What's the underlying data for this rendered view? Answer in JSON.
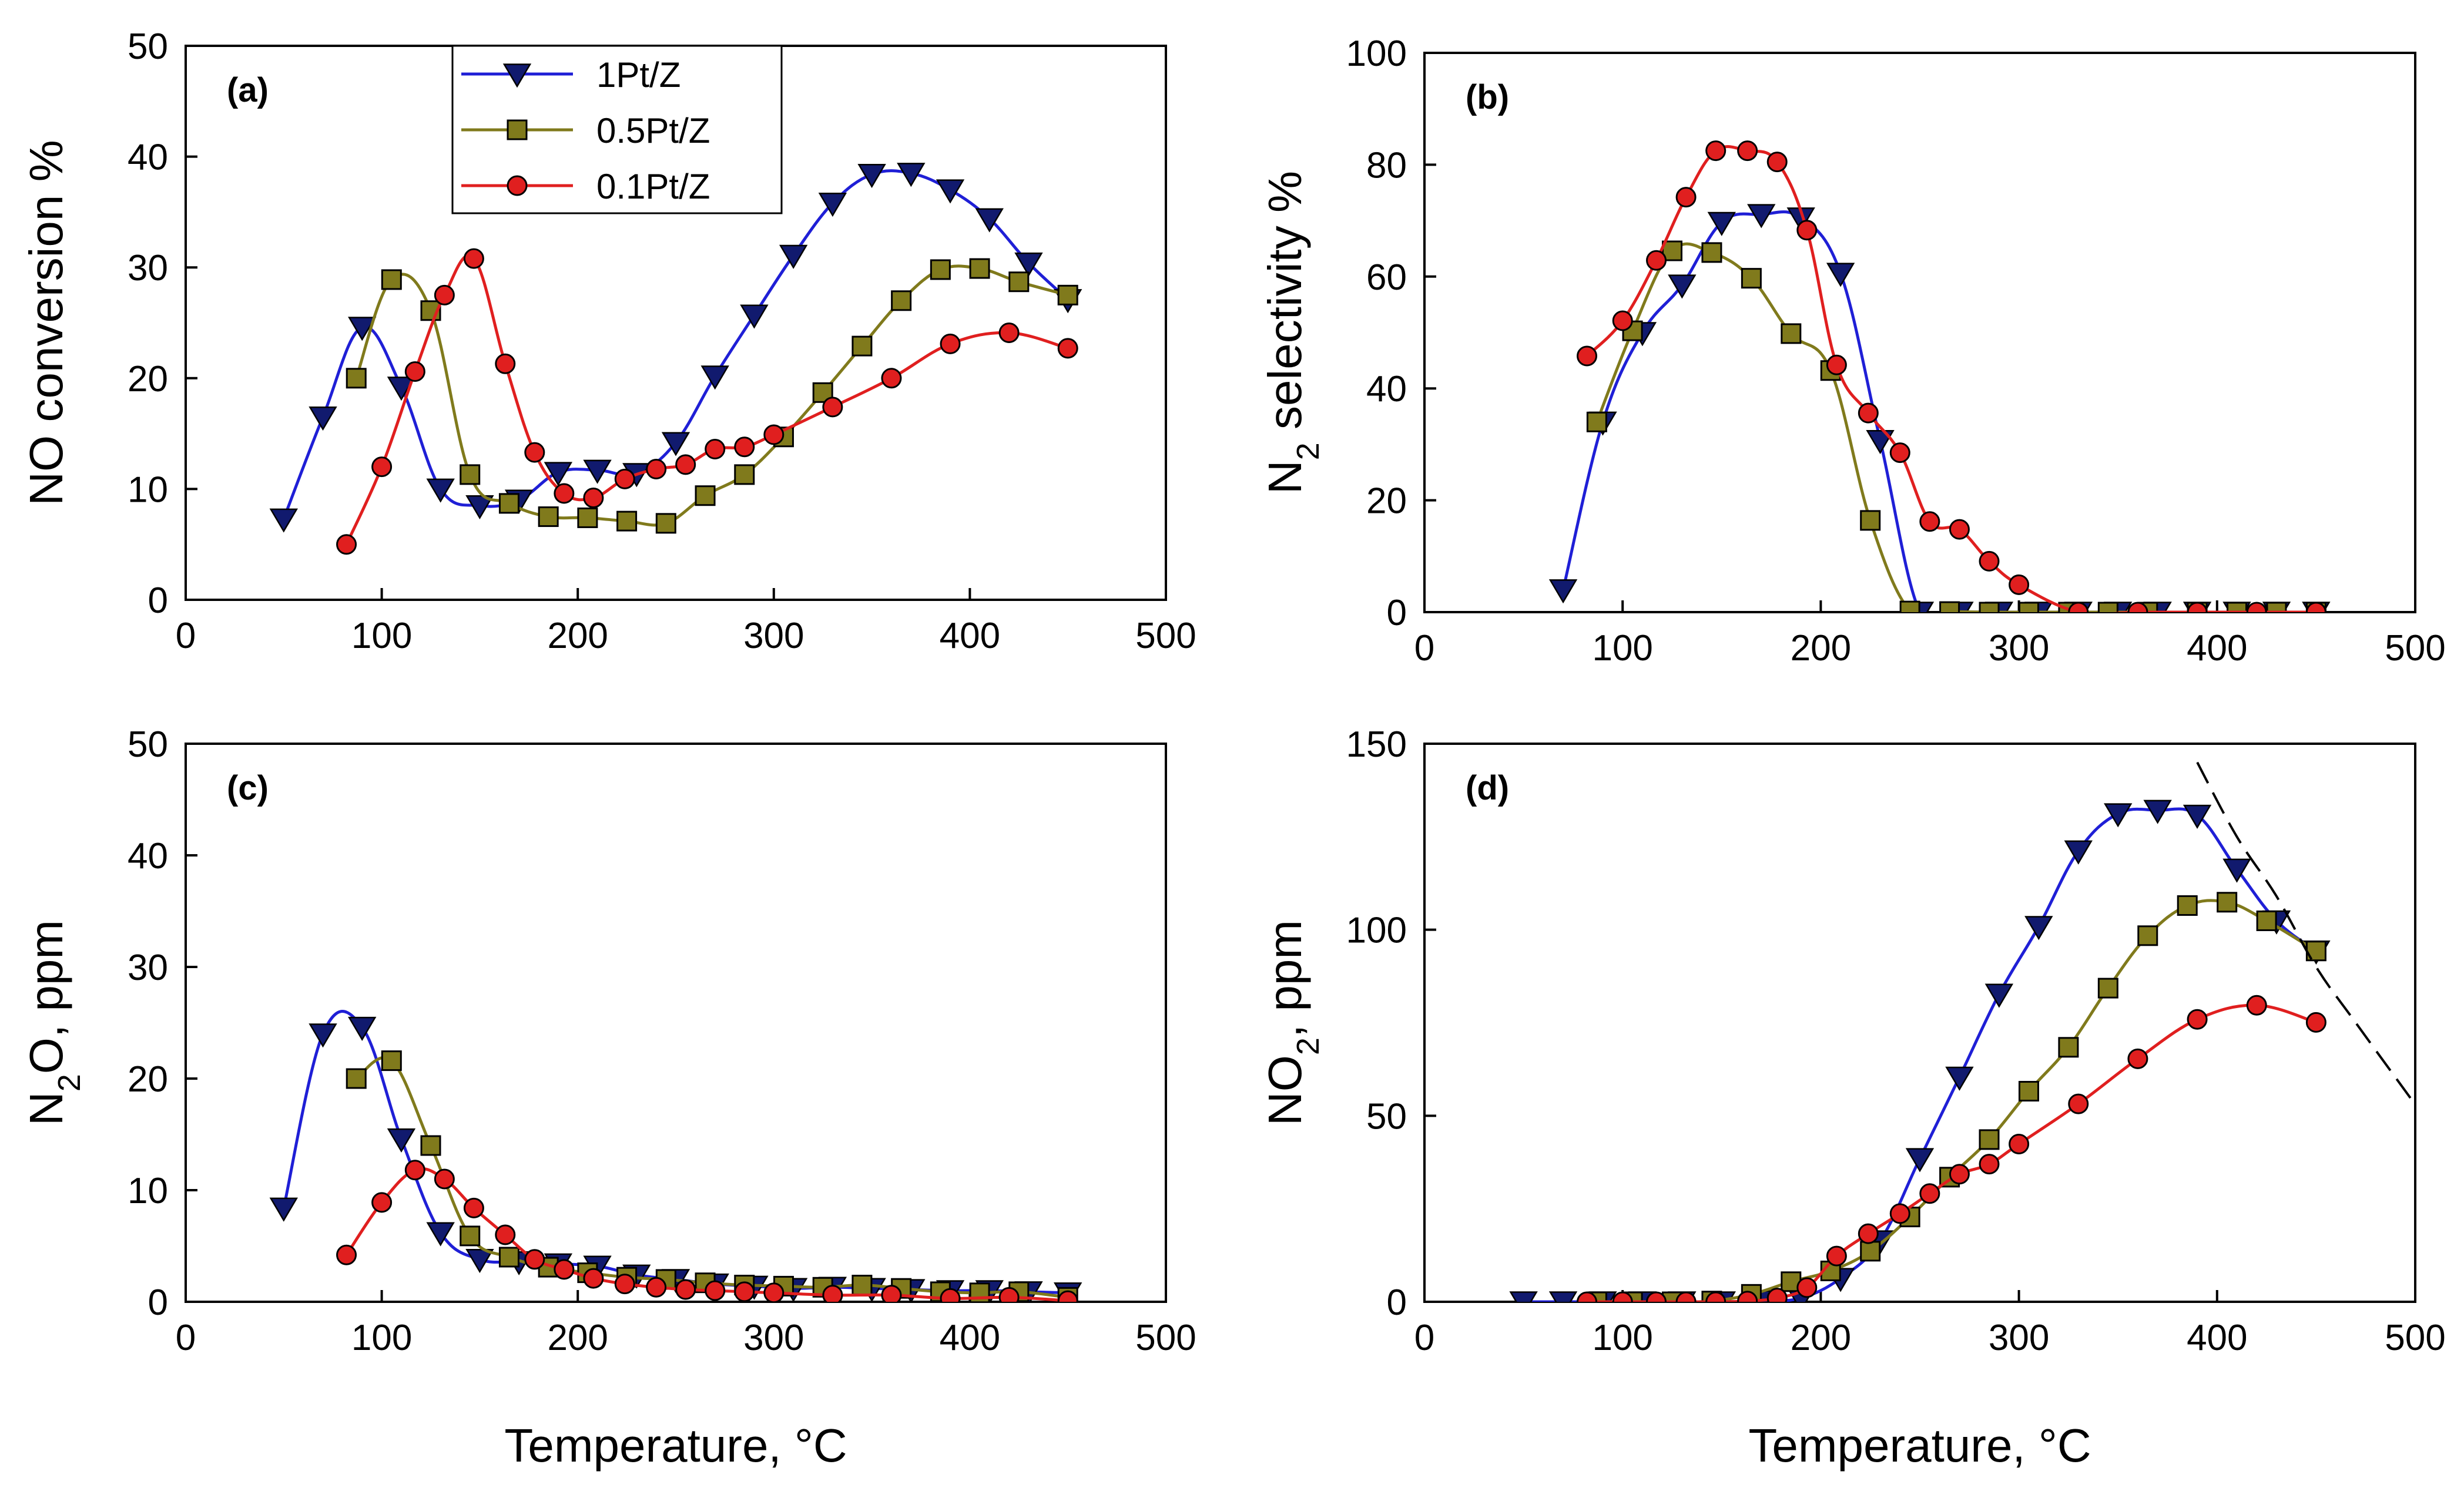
{
  "colors": {
    "1Pt/Z": "#1f1fd6",
    "0.5Pt/Z": "#807a1c",
    "0.1Pt/Z": "#e01f1f",
    "marker_fill_1Pt/Z": "#111a6e",
    "marker_fill_0.5Pt/Z": "#807a1c",
    "marker_fill_0.1Pt/Z": "#e01f1f"
  },
  "legend": [
    {
      "name": "1Pt/Z",
      "marker": "triangle-down"
    },
    {
      "name": "0.5Pt/Z",
      "marker": "square"
    },
    {
      "name": "0.1Pt/Z",
      "marker": "circle"
    }
  ],
  "chart_data": [
    {
      "id": "a",
      "type": "line",
      "panel_label": "(a)",
      "xlabel": "",
      "ylabel_parts": [
        "NO conversion %"
      ],
      "xlim": [
        0,
        500
      ],
      "xticks": [
        "0",
        "100",
        "200",
        "300",
        "400",
        "500"
      ],
      "ylim": [
        0,
        50
      ],
      "yticks": [
        "0",
        "10",
        "20",
        "30",
        "40",
        "50"
      ],
      "legend": true,
      "series": [
        {
          "name": "1Pt/Z",
          "x": [
            50,
            70,
            90,
            110,
            130,
            150,
            170,
            190,
            210,
            230,
            250,
            270,
            290,
            310,
            330,
            350,
            370,
            390,
            410,
            430,
            450
          ],
          "y": [
            7.3,
            16.5,
            24.6,
            19.2,
            10,
            8.5,
            9,
            11.5,
            11.7,
            11.4,
            14.2,
            20.2,
            25.7,
            31.1,
            35.8,
            38.4,
            38.5,
            37,
            34.4,
            30.4,
            27.1
          ]
        },
        {
          "name": "0.5Pt/Z",
          "x": [
            87,
            105,
            125,
            145,
            165,
            185,
            205,
            225,
            245,
            265,
            285,
            305,
            325,
            345,
            365,
            385,
            405,
            425,
            450
          ],
          "y": [
            20,
            28.9,
            26.1,
            11.3,
            8.7,
            7.5,
            7.4,
            7.1,
            6.9,
            9.4,
            11.3,
            14.7,
            18.7,
            22.9,
            27,
            29.8,
            29.9,
            28.7,
            27.5
          ]
        },
        {
          "name": "0.1Pt/Z",
          "x": [
            82,
            100,
            117,
            132,
            147,
            163,
            178,
            193,
            208,
            224,
            240,
            255,
            270,
            285,
            300,
            330,
            360,
            390,
            420,
            450
          ],
          "y": [
            5,
            12,
            20.6,
            27.5,
            30.8,
            21.3,
            13.3,
            9.6,
            9.2,
            10.9,
            11.8,
            12.2,
            13.6,
            13.8,
            14.9,
            17.4,
            20,
            23.1,
            24.1,
            22.7
          ]
        }
      ]
    },
    {
      "id": "b",
      "type": "line",
      "panel_label": "(b)",
      "xlabel": "",
      "ylabel_parts": [
        "N",
        "2",
        " selectivity %"
      ],
      "xlim": [
        0,
        500
      ],
      "xticks": [
        "0",
        "100",
        "200",
        "300",
        "400",
        "500"
      ],
      "ylim": [
        0,
        100
      ],
      "yticks": [
        "0",
        "20",
        "40",
        "60",
        "80",
        "100"
      ],
      "legend": false,
      "series": [
        {
          "name": "1Pt/Z",
          "x": [
            70,
            90,
            110,
            130,
            150,
            170,
            190,
            210,
            230,
            250,
            270,
            290,
            310,
            330,
            350,
            370,
            390,
            410,
            430,
            450
          ],
          "y": [
            4,
            34,
            50,
            58.5,
            69.7,
            71.1,
            70.5,
            60.6,
            30.7,
            0,
            0,
            0,
            0,
            0,
            0,
            0,
            0,
            0,
            0,
            0
          ]
        },
        {
          "name": "0.5Pt/Z",
          "x": [
            87,
            105,
            125,
            145,
            165,
            185,
            205,
            225,
            245,
            265,
            285,
            305,
            325,
            345,
            365,
            390,
            410,
            430,
            450
          ],
          "y": [
            34,
            50.3,
            64.6,
            64.3,
            59.7,
            49.8,
            43.2,
            16.4,
            0.2,
            0.1,
            0,
            0,
            0,
            0,
            0,
            0,
            0,
            0,
            0
          ]
        },
        {
          "name": "0.1Pt/Z",
          "x": [
            82,
            100,
            117,
            132,
            147,
            163,
            178,
            193,
            208,
            224,
            240,
            255,
            270,
            285,
            300,
            330,
            360,
            390,
            420,
            450
          ],
          "y": [
            45.8,
            52.1,
            62.9,
            74.2,
            82.5,
            82.5,
            80.5,
            68.3,
            44.2,
            35.6,
            28.5,
            16.2,
            14.8,
            9.1,
            4.9,
            0,
            0,
            0,
            0,
            0
          ]
        }
      ]
    },
    {
      "id": "c",
      "type": "line",
      "panel_label": "(c)",
      "xlabel": "Temperature, °C",
      "ylabel_parts": [
        "N",
        "2",
        "O, ppm"
      ],
      "xlim": [
        0,
        500
      ],
      "xticks": [
        "0",
        "100",
        "200",
        "300",
        "400",
        "500"
      ],
      "ylim": [
        0,
        50
      ],
      "yticks": [
        "0",
        "10",
        "20",
        "30",
        "40",
        "50"
      ],
      "legend": false,
      "series": [
        {
          "name": "1Pt/Z",
          "x": [
            50,
            70,
            90,
            110,
            130,
            150,
            170,
            190,
            210,
            230,
            250,
            270,
            290,
            310,
            330,
            350,
            370,
            390,
            410,
            430,
            450
          ],
          "y": [
            8.4,
            24,
            24.6,
            14.6,
            6.2,
            3.8,
            3.6,
            3.4,
            3.2,
            2.4,
            2,
            1.6,
            1.4,
            1.2,
            1.3,
            1.2,
            1.1,
            1,
            1,
            0.9,
            0.8
          ]
        },
        {
          "name": "0.5Pt/Z",
          "x": [
            87,
            105,
            125,
            145,
            165,
            185,
            205,
            225,
            245,
            265,
            285,
            305,
            325,
            345,
            365,
            385,
            405,
            425,
            450
          ],
          "y": [
            20,
            21.6,
            14,
            5.9,
            4,
            3.1,
            2.6,
            2.2,
            2,
            1.7,
            1.5,
            1.4,
            1.3,
            1.5,
            1.2,
            0.9,
            0.8,
            0.9,
            0.4
          ]
        },
        {
          "name": "0.1Pt/Z",
          "x": [
            82,
            100,
            117,
            132,
            147,
            163,
            178,
            193,
            208,
            224,
            240,
            255,
            270,
            285,
            300,
            330,
            360,
            390,
            420,
            450
          ],
          "y": [
            4.2,
            8.9,
            11.8,
            11,
            8.4,
            6,
            3.8,
            2.9,
            2.1,
            1.6,
            1.3,
            1.1,
            1,
            0.9,
            0.8,
            0.6,
            0.6,
            0.3,
            0.4,
            0.1
          ]
        }
      ]
    },
    {
      "id": "d",
      "type": "line",
      "panel_label": "(d)",
      "xlabel": "Temperature, °C",
      "ylabel_parts": [
        "NO",
        "2",
        ", ppm"
      ],
      "xlim": [
        0,
        500
      ],
      "xticks": [
        "0",
        "100",
        "200",
        "300",
        "400",
        "500"
      ],
      "ylim": [
        0,
        150
      ],
      "yticks": [
        "0",
        "50",
        "100",
        "150"
      ],
      "legend": false,
      "series": [
        {
          "name": "1Pt/Z",
          "x": [
            50,
            70,
            90,
            110,
            130,
            150,
            170,
            190,
            210,
            230,
            250,
            270,
            290,
            310,
            330,
            350,
            370,
            390,
            410,
            430,
            450
          ],
          "y": [
            0,
            0,
            0,
            0,
            0,
            0,
            0.3,
            1,
            6.3,
            16.4,
            38.5,
            60.4,
            82.7,
            100.9,
            121.2,
            131.2,
            132.1,
            130.8,
            116.3,
            102.4,
            94.3
          ]
        },
        {
          "name": "0.5Pt/Z",
          "x": [
            87,
            105,
            125,
            145,
            165,
            185,
            205,
            225,
            245,
            265,
            285,
            305,
            325,
            345,
            365,
            385,
            405,
            425,
            450
          ],
          "y": [
            0,
            0,
            0,
            0.2,
            2,
            5.4,
            8.3,
            13.6,
            22.8,
            33.5,
            43.6,
            56.6,
            68.4,
            84.3,
            98.4,
            106.5,
            107.4,
            102.4,
            94.3
          ]
        },
        {
          "name": "0.1Pt/Z",
          "x": [
            82,
            100,
            117,
            132,
            147,
            163,
            178,
            193,
            208,
            224,
            240,
            255,
            270,
            285,
            300,
            330,
            360,
            390,
            420,
            450
          ],
          "y": [
            0,
            0,
            0,
            0,
            0,
            0.2,
            1,
            3.8,
            12.3,
            18.3,
            23.7,
            29.1,
            34.3,
            37,
            42.4,
            53.2,
            65.3,
            75.9,
            79.7,
            75.1
          ]
        }
      ],
      "reference_line": {
        "style": "dashed",
        "x": [
          390,
          410,
          430,
          450,
          470,
          500
        ],
        "y": [
          145,
          125,
          109,
          90,
          75,
          53
        ]
      }
    }
  ]
}
